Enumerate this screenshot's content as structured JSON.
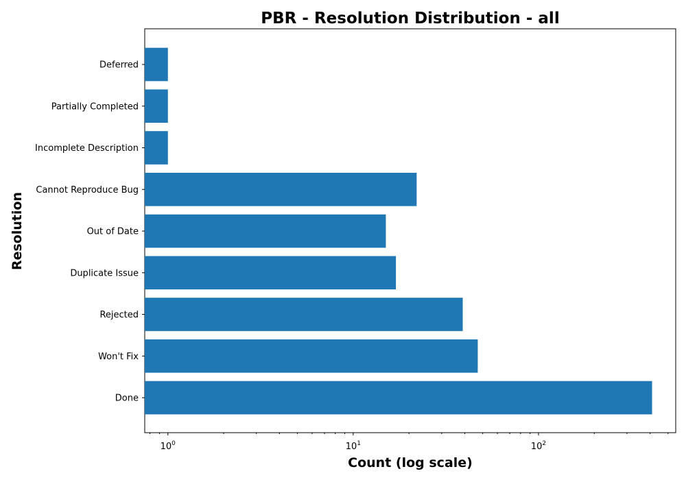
{
  "chart_data": {
    "type": "bar",
    "orientation": "horizontal",
    "title": "PBR - Resolution Distribution - all",
    "xlabel": "Count (log scale)",
    "ylabel": "Resolution",
    "xscale": "log",
    "xlim": [
      0.75,
      550
    ],
    "xticks": [
      {
        "base": "10",
        "exp": "0",
        "value": 1
      },
      {
        "base": "10",
        "exp": "1",
        "value": 10
      },
      {
        "base": "10",
        "exp": "2",
        "value": 100
      }
    ],
    "categories": [
      "Done",
      "Won't Fix",
      "Rejected",
      "Duplicate Issue",
      "Out of Date",
      "Cannot Reproduce Bug",
      "Incomplete Description",
      "Partially Completed",
      "Deferred"
    ],
    "values": [
      410,
      47,
      39,
      17,
      15,
      22,
      1,
      1,
      1
    ],
    "bar_color": "#1f77b4",
    "grid": false
  }
}
